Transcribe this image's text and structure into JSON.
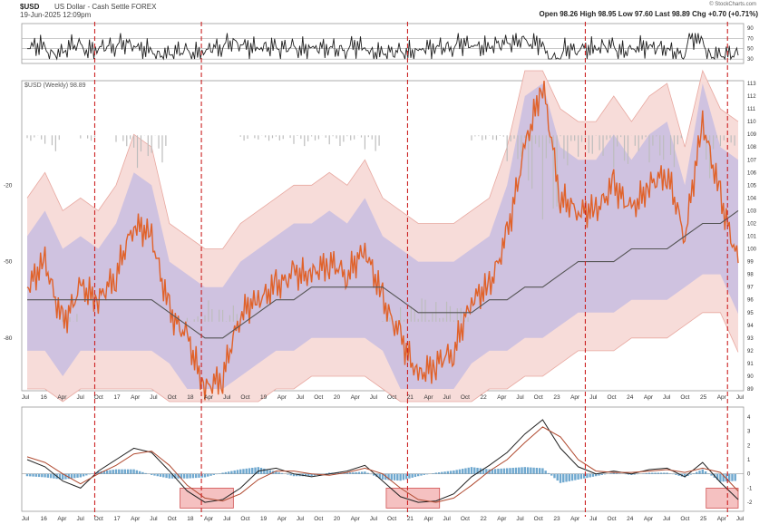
{
  "header": {
    "symbol": "$USD",
    "description": "US Dollar - Cash Settle FOREX",
    "date": "19-Jun-2025 12:09pm",
    "quote": "Open 98.26  High 98.95  Low 97.60  Last 98.89  Chg +0.70 (+0.71%)",
    "brand": "© StockCharts.com"
  },
  "colors": {
    "price_line": "#e0622a",
    "moving_average": "#555555",
    "outer_band": "#f7dcd9",
    "inner_band": "#cfc2e0",
    "vertical_markers": "#cc2222",
    "highlight_box": "#f0a0a0",
    "histogram_blue": "#6fa8cf",
    "histogram_gray": "#bdbdbd"
  },
  "chart_data": [
    {
      "type": "line",
      "panel": "top-oscillator",
      "yticks": [
        "90",
        "70",
        "50",
        "30"
      ],
      "ylim": [
        25,
        95
      ],
      "reference_lines": [
        70,
        50,
        30
      ],
      "series": []
    },
    {
      "type": "line",
      "panel": "main-price",
      "legend": "$USD (Weekly) 98.89",
      "x_tick_labels": [
        "Jul",
        "16",
        "Apr",
        "Jul",
        "Oct",
        "17",
        "Apr",
        "Jul",
        "Oct",
        "18",
        "Apr",
        "Jul",
        "Oct",
        "19",
        "Apr",
        "Jul",
        "Oct",
        "20",
        "Apr",
        "Jul",
        "Oct",
        "21",
        "Apr",
        "Jul",
        "Oct",
        "22",
        "Apr",
        "Jul",
        "Oct",
        "23",
        "Apr",
        "Jul",
        "Oct",
        "24",
        "Apr",
        "Jul",
        "Oct",
        "25",
        "Apr",
        "Jul"
      ],
      "y_right_ticks": [
        "113",
        "112",
        "111",
        "110",
        "109",
        "108",
        "107",
        "106",
        "105",
        "104",
        "103",
        "102",
        "101",
        "100",
        "99",
        "98",
        "97",
        "96",
        "95",
        "94",
        "93",
        "92",
        "91",
        "90",
        "89"
      ],
      "y_left_ticks": [
        "-20",
        "-50",
        "-80"
      ],
      "ylim": [
        89,
        113
      ],
      "x": [
        2015.5,
        2015.75,
        2016.0,
        2016.25,
        2016.5,
        2016.75,
        2017.0,
        2017.25,
        2017.5,
        2017.75,
        2018.0,
        2018.25,
        2018.5,
        2018.75,
        2019.0,
        2019.25,
        2019.5,
        2019.75,
        2020.0,
        2020.25,
        2020.5,
        2020.75,
        2021.0,
        2021.25,
        2021.5,
        2021.75,
        2022.0,
        2022.25,
        2022.5,
        2022.75,
        2023.0,
        2023.25,
        2023.5,
        2023.75,
        2024.0,
        2024.25,
        2024.5,
        2024.75,
        2025.0,
        2025.25,
        2025.5
      ],
      "series": [
        {
          "values": [
            97,
            99,
            94,
            97,
            96,
            98,
            102,
            101,
            95,
            93,
            89,
            90,
            95,
            96,
            97,
            98,
            98,
            99,
            98,
            100,
            96,
            93,
            90,
            91,
            92,
            96,
            97,
            101,
            108,
            113,
            104,
            103,
            103,
            105,
            103,
            105,
            106,
            101,
            110,
            104,
            98.89
          ]
        },
        {
          "values": [
            96,
            96,
            96,
            96,
            96,
            96,
            96,
            96,
            95,
            94,
            93,
            93,
            94,
            95,
            96,
            96,
            97,
            97,
            97,
            97,
            97,
            96,
            95,
            95,
            95,
            95,
            96,
            96,
            97,
            97,
            98,
            99,
            99,
            99,
            100,
            100,
            100,
            101,
            102,
            102,
            103
          ]
        }
      ]
    },
    {
      "type": "line",
      "panel": "bottom-oscillator",
      "yticks": [
        "4",
        "3",
        "2",
        "1",
        "0",
        "-1",
        "-2"
      ],
      "ylim": [
        -2.5,
        4.5
      ],
      "x_tick_labels": [
        "Jul",
        "16",
        "Apr",
        "Jul",
        "Oct",
        "17",
        "Apr",
        "Jul",
        "Oct",
        "18",
        "Apr",
        "Jul",
        "Oct",
        "19",
        "Apr",
        "Jul",
        "Oct",
        "20",
        "Apr",
        "Jul",
        "Oct",
        "21",
        "Apr",
        "Jul",
        "Oct",
        "22",
        "Apr",
        "Jul",
        "Oct",
        "23",
        "Apr",
        "Jul",
        "Oct",
        "24",
        "Apr",
        "Jul",
        "Oct",
        "25",
        "Apr",
        "Jul"
      ],
      "series": [
        {
          "values": [
            1,
            0.5,
            -0.5,
            -1.0,
            0.2,
            1.0,
            1.8,
            1.5,
            0.2,
            -1.2,
            -2.0,
            -1.8,
            -1.0,
            0.2,
            0.4,
            0.0,
            -0.2,
            0.0,
            0.2,
            0.6,
            -0.5,
            -1.6,
            -2.0,
            -1.9,
            -1.4,
            -0.2,
            0.6,
            1.5,
            2.8,
            3.8,
            1.8,
            0.5,
            0.0,
            0.2,
            0.0,
            0.3,
            0.4,
            -0.2,
            0.8,
            -0.6,
            -1.8
          ]
        },
        {
          "values": [
            1.2,
            0.8,
            0.0,
            -0.7,
            0.0,
            0.6,
            1.4,
            1.6,
            0.6,
            -0.8,
            -1.7,
            -1.9,
            -1.4,
            -0.4,
            0.2,
            0.2,
            0.0,
            -0.1,
            0.1,
            0.4,
            0.0,
            -1.0,
            -1.8,
            -2.0,
            -1.7,
            -0.8,
            0.2,
            1.0,
            2.2,
            3.3,
            2.6,
            1.0,
            0.2,
            0.1,
            0.1,
            0.2,
            0.3,
            0.1,
            0.4,
            0.1,
            -1.2
          ]
        }
      ]
    }
  ]
}
